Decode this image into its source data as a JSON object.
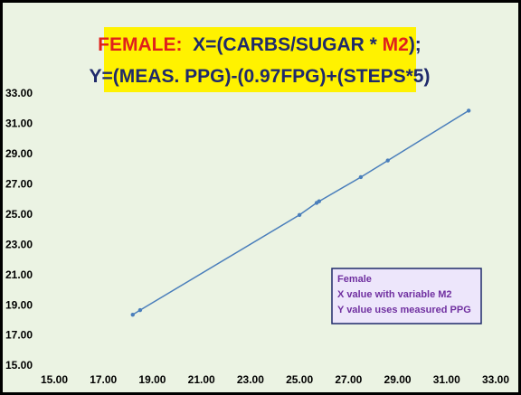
{
  "chart_data": {
    "type": "scatter",
    "title": [
      [
        {
          "text": "FEMALE:",
          "color": "#e0201c"
        },
        {
          "text": "  X=(CARBS/SUGAR * ",
          "color": "#1f2a6b"
        },
        {
          "text": "M2",
          "color": "#e0201c"
        },
        {
          "text": ");",
          "color": "#1f2a6b"
        }
      ],
      [
        {
          "text": "Y=(MEAS. PPG)-(0.97FPG)+(STEPS*5)",
          "color": "#1f2a6b"
        }
      ]
    ],
    "annotation": [
      "Female",
      "X value with variable M2",
      "Y value uses measured PPG"
    ],
    "x": [
      18.2,
      18.5,
      25.0,
      25.7,
      25.8,
      27.5,
      28.6,
      31.9
    ],
    "values": [
      18.4,
      18.7,
      25.0,
      25.8,
      25.9,
      27.5,
      28.6,
      31.9
    ],
    "color": "#4a7ebb",
    "xlim": [
      15,
      33
    ],
    "ylim": [
      15,
      33
    ],
    "xticks": [
      {
        "value": 15,
        "label": "15.00"
      },
      {
        "value": 17,
        "label": "17.00"
      },
      {
        "value": 19,
        "label": "19.00"
      },
      {
        "value": 21,
        "label": "21.00"
      },
      {
        "value": 23,
        "label": "23.00"
      },
      {
        "value": 25,
        "label": "25.00"
      },
      {
        "value": 27,
        "label": "27.00"
      },
      {
        "value": 29,
        "label": "29.00"
      },
      {
        "value": 31,
        "label": "31.00"
      },
      {
        "value": 33,
        "label": "33.00"
      }
    ],
    "yticks": [
      {
        "value": 15,
        "label": "15.00"
      },
      {
        "value": 17,
        "label": "17.00"
      },
      {
        "value": 19,
        "label": "19.00"
      },
      {
        "value": 21,
        "label": "21.00"
      },
      {
        "value": 23,
        "label": "23.00"
      },
      {
        "value": 25,
        "label": "25.00"
      },
      {
        "value": 27,
        "label": "27.00"
      },
      {
        "value": 29,
        "label": "29.00"
      },
      {
        "value": 31,
        "label": "31.00"
      },
      {
        "value": 33,
        "label": "33.00"
      }
    ],
    "grid": false
  }
}
